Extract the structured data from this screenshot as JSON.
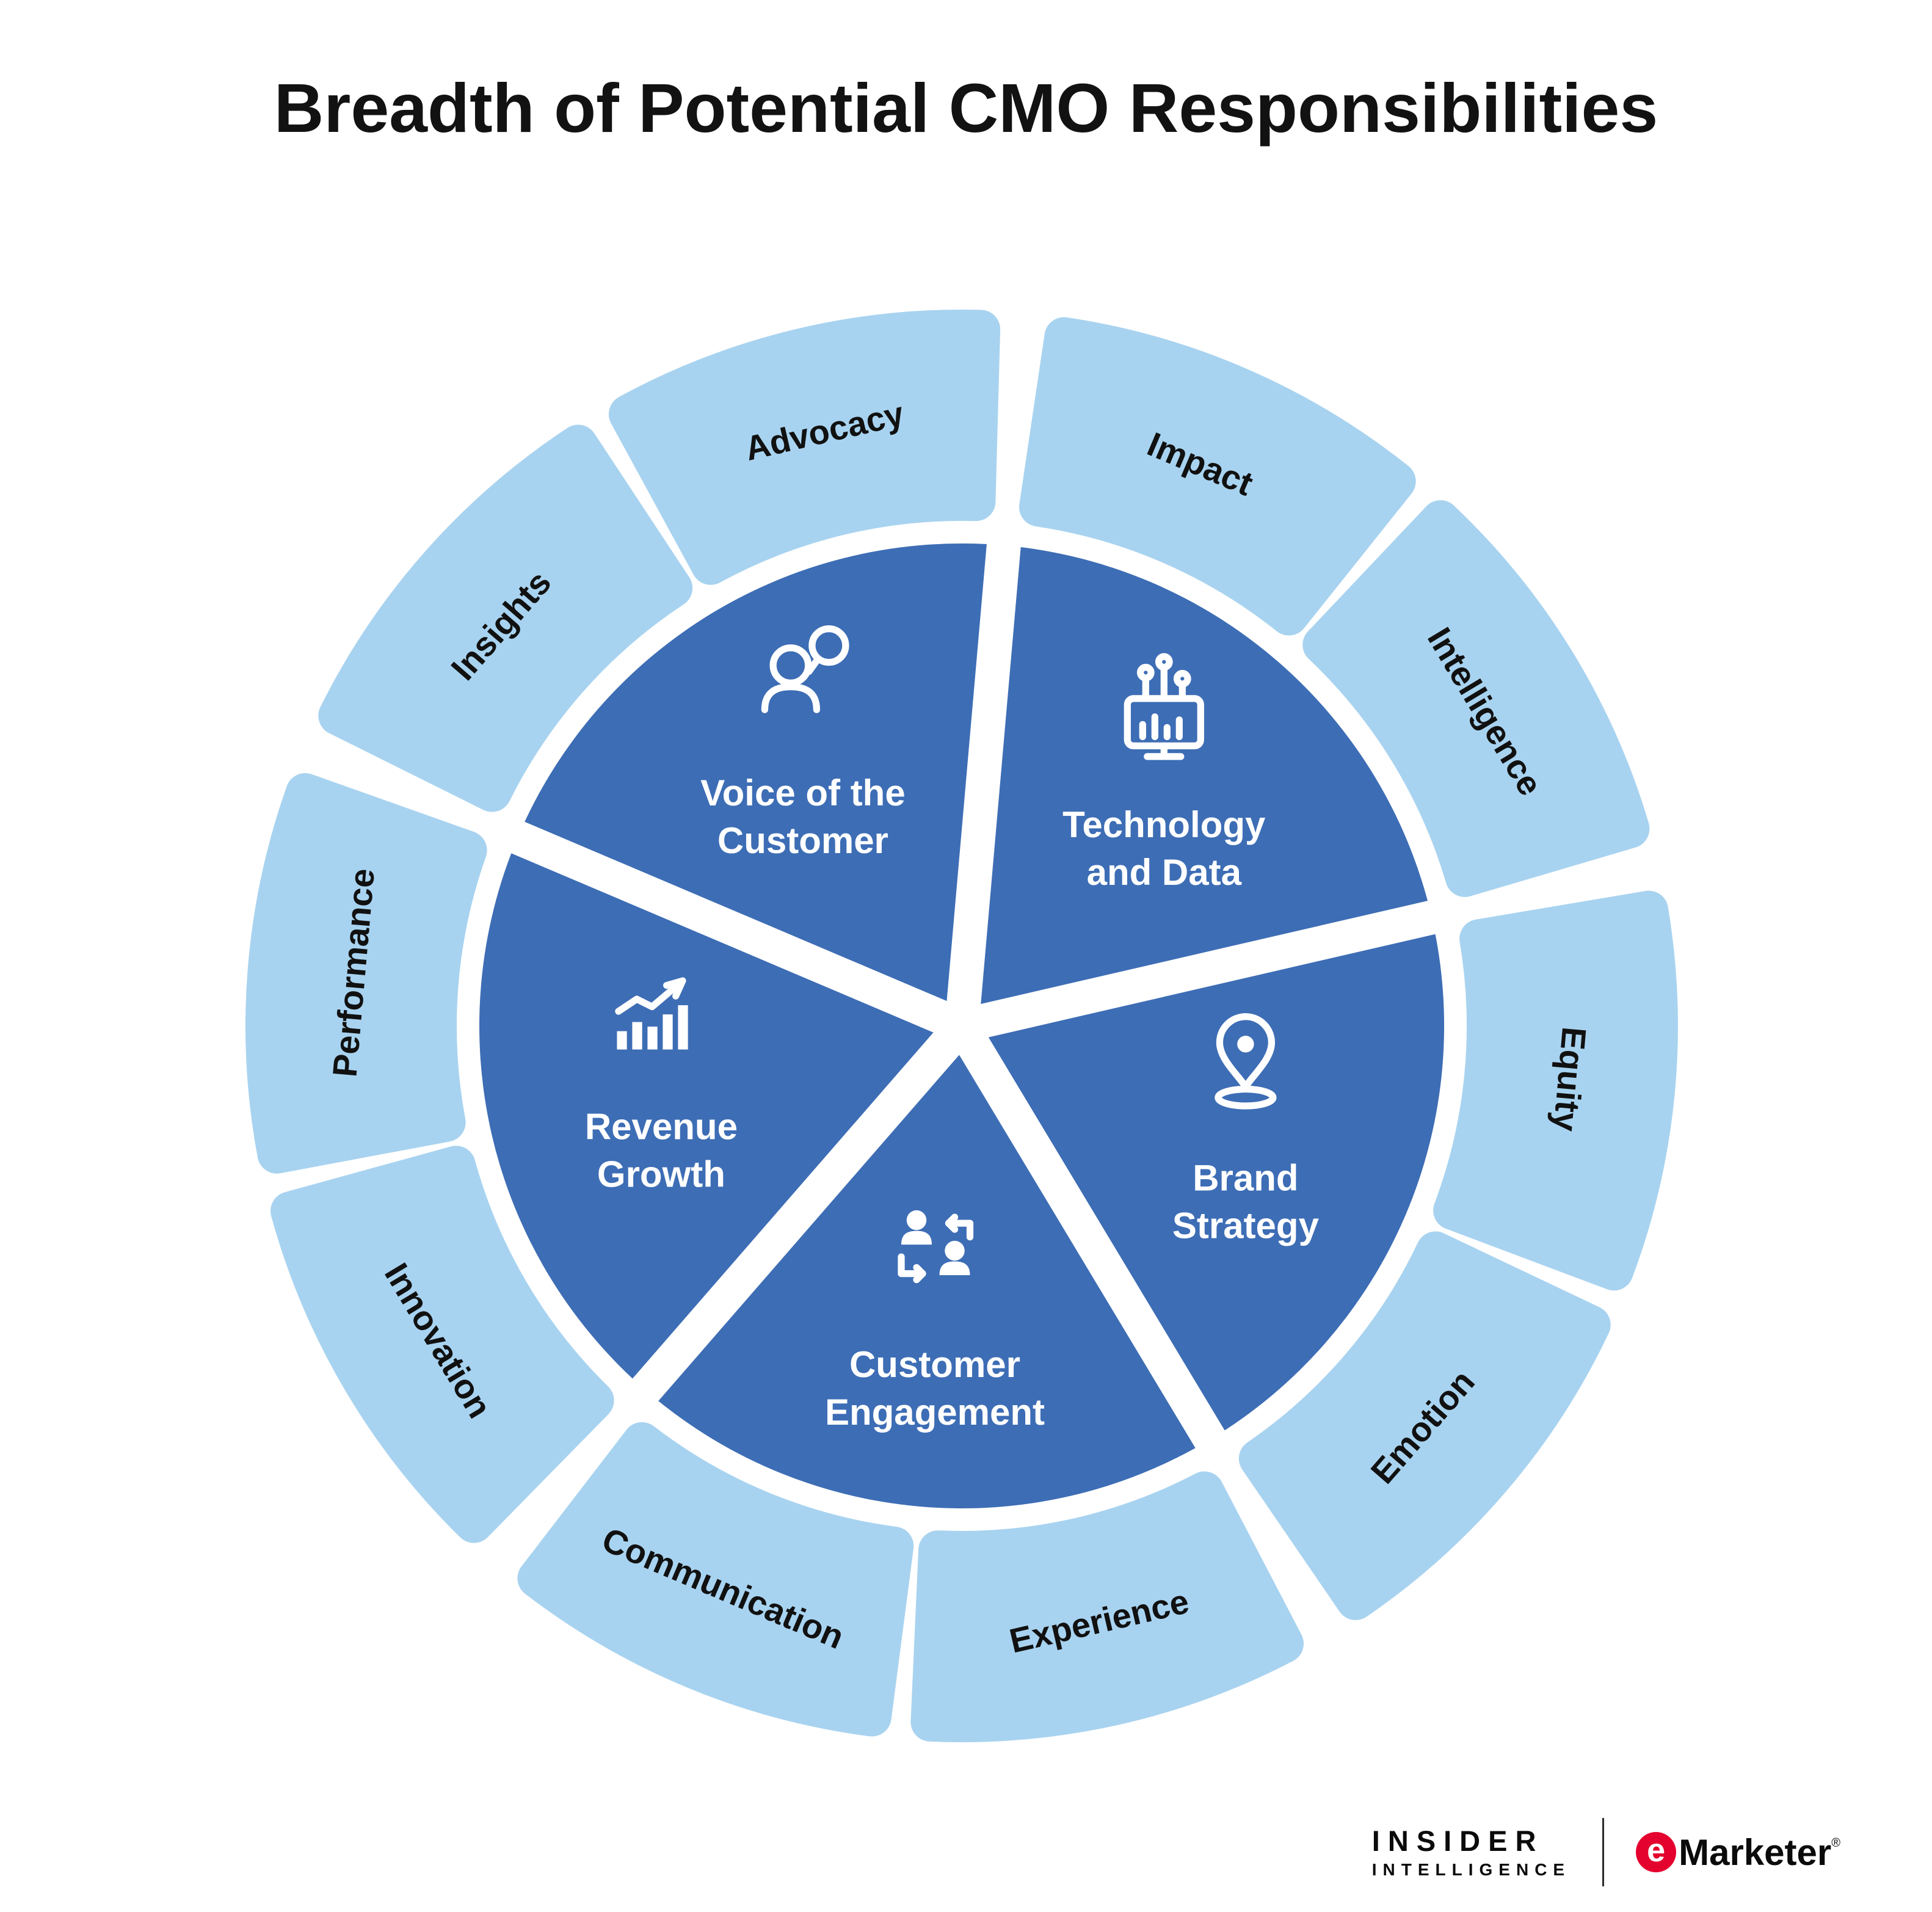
{
  "title": "Breadth of Potential CMO Responsibilities",
  "colors": {
    "wedge_blue": "#3D6DB5",
    "ring_blue": "#A8D3F0",
    "label_dark": "#111111",
    "wedge_text": "#FFFFFF",
    "background": "#FFFFFF",
    "emarketer_red": "#E4032E"
  },
  "wheel": {
    "wedges": [
      {
        "id": "voice-of-the-customer",
        "label": "Voice of the Customer",
        "label_lines": [
          "Voice of the",
          "Customer"
        ],
        "icon": "voice-of-the-customer-icon",
        "outer_segments": [
          "Advocacy",
          "Insights"
        ]
      },
      {
        "id": "technology-and-data",
        "label": "Technology and Data",
        "label_lines": [
          "Technology",
          "and Data"
        ],
        "icon": "technology-and-data-icon",
        "outer_segments": [
          "Intelligence",
          "Impact"
        ]
      },
      {
        "id": "brand-strategy",
        "label": "Brand Strategy",
        "label_lines": [
          "Brand",
          "Strategy"
        ],
        "icon": "brand-strategy-icon",
        "outer_segments": [
          "Emotion",
          "Equity"
        ]
      },
      {
        "id": "customer-engagement",
        "label": "Customer Engagement",
        "label_lines": [
          "Customer",
          "Engagement"
        ],
        "icon": "customer-engagement-icon",
        "outer_segments": [
          "Communication",
          "Experience"
        ]
      },
      {
        "id": "revenue-growth",
        "label": "Revenue Growth",
        "label_lines": [
          "Revenue",
          "Growth"
        ],
        "icon": "revenue-growth-icon",
        "outer_segments": [
          "Performance",
          "Innovation"
        ]
      }
    ]
  },
  "footer": {
    "insider_line1": "INSIDER",
    "insider_line2": "INTELLIGENCE",
    "emarketer_e": "e",
    "emarketer_word": "Marketer",
    "emarketer_reg": "®"
  }
}
